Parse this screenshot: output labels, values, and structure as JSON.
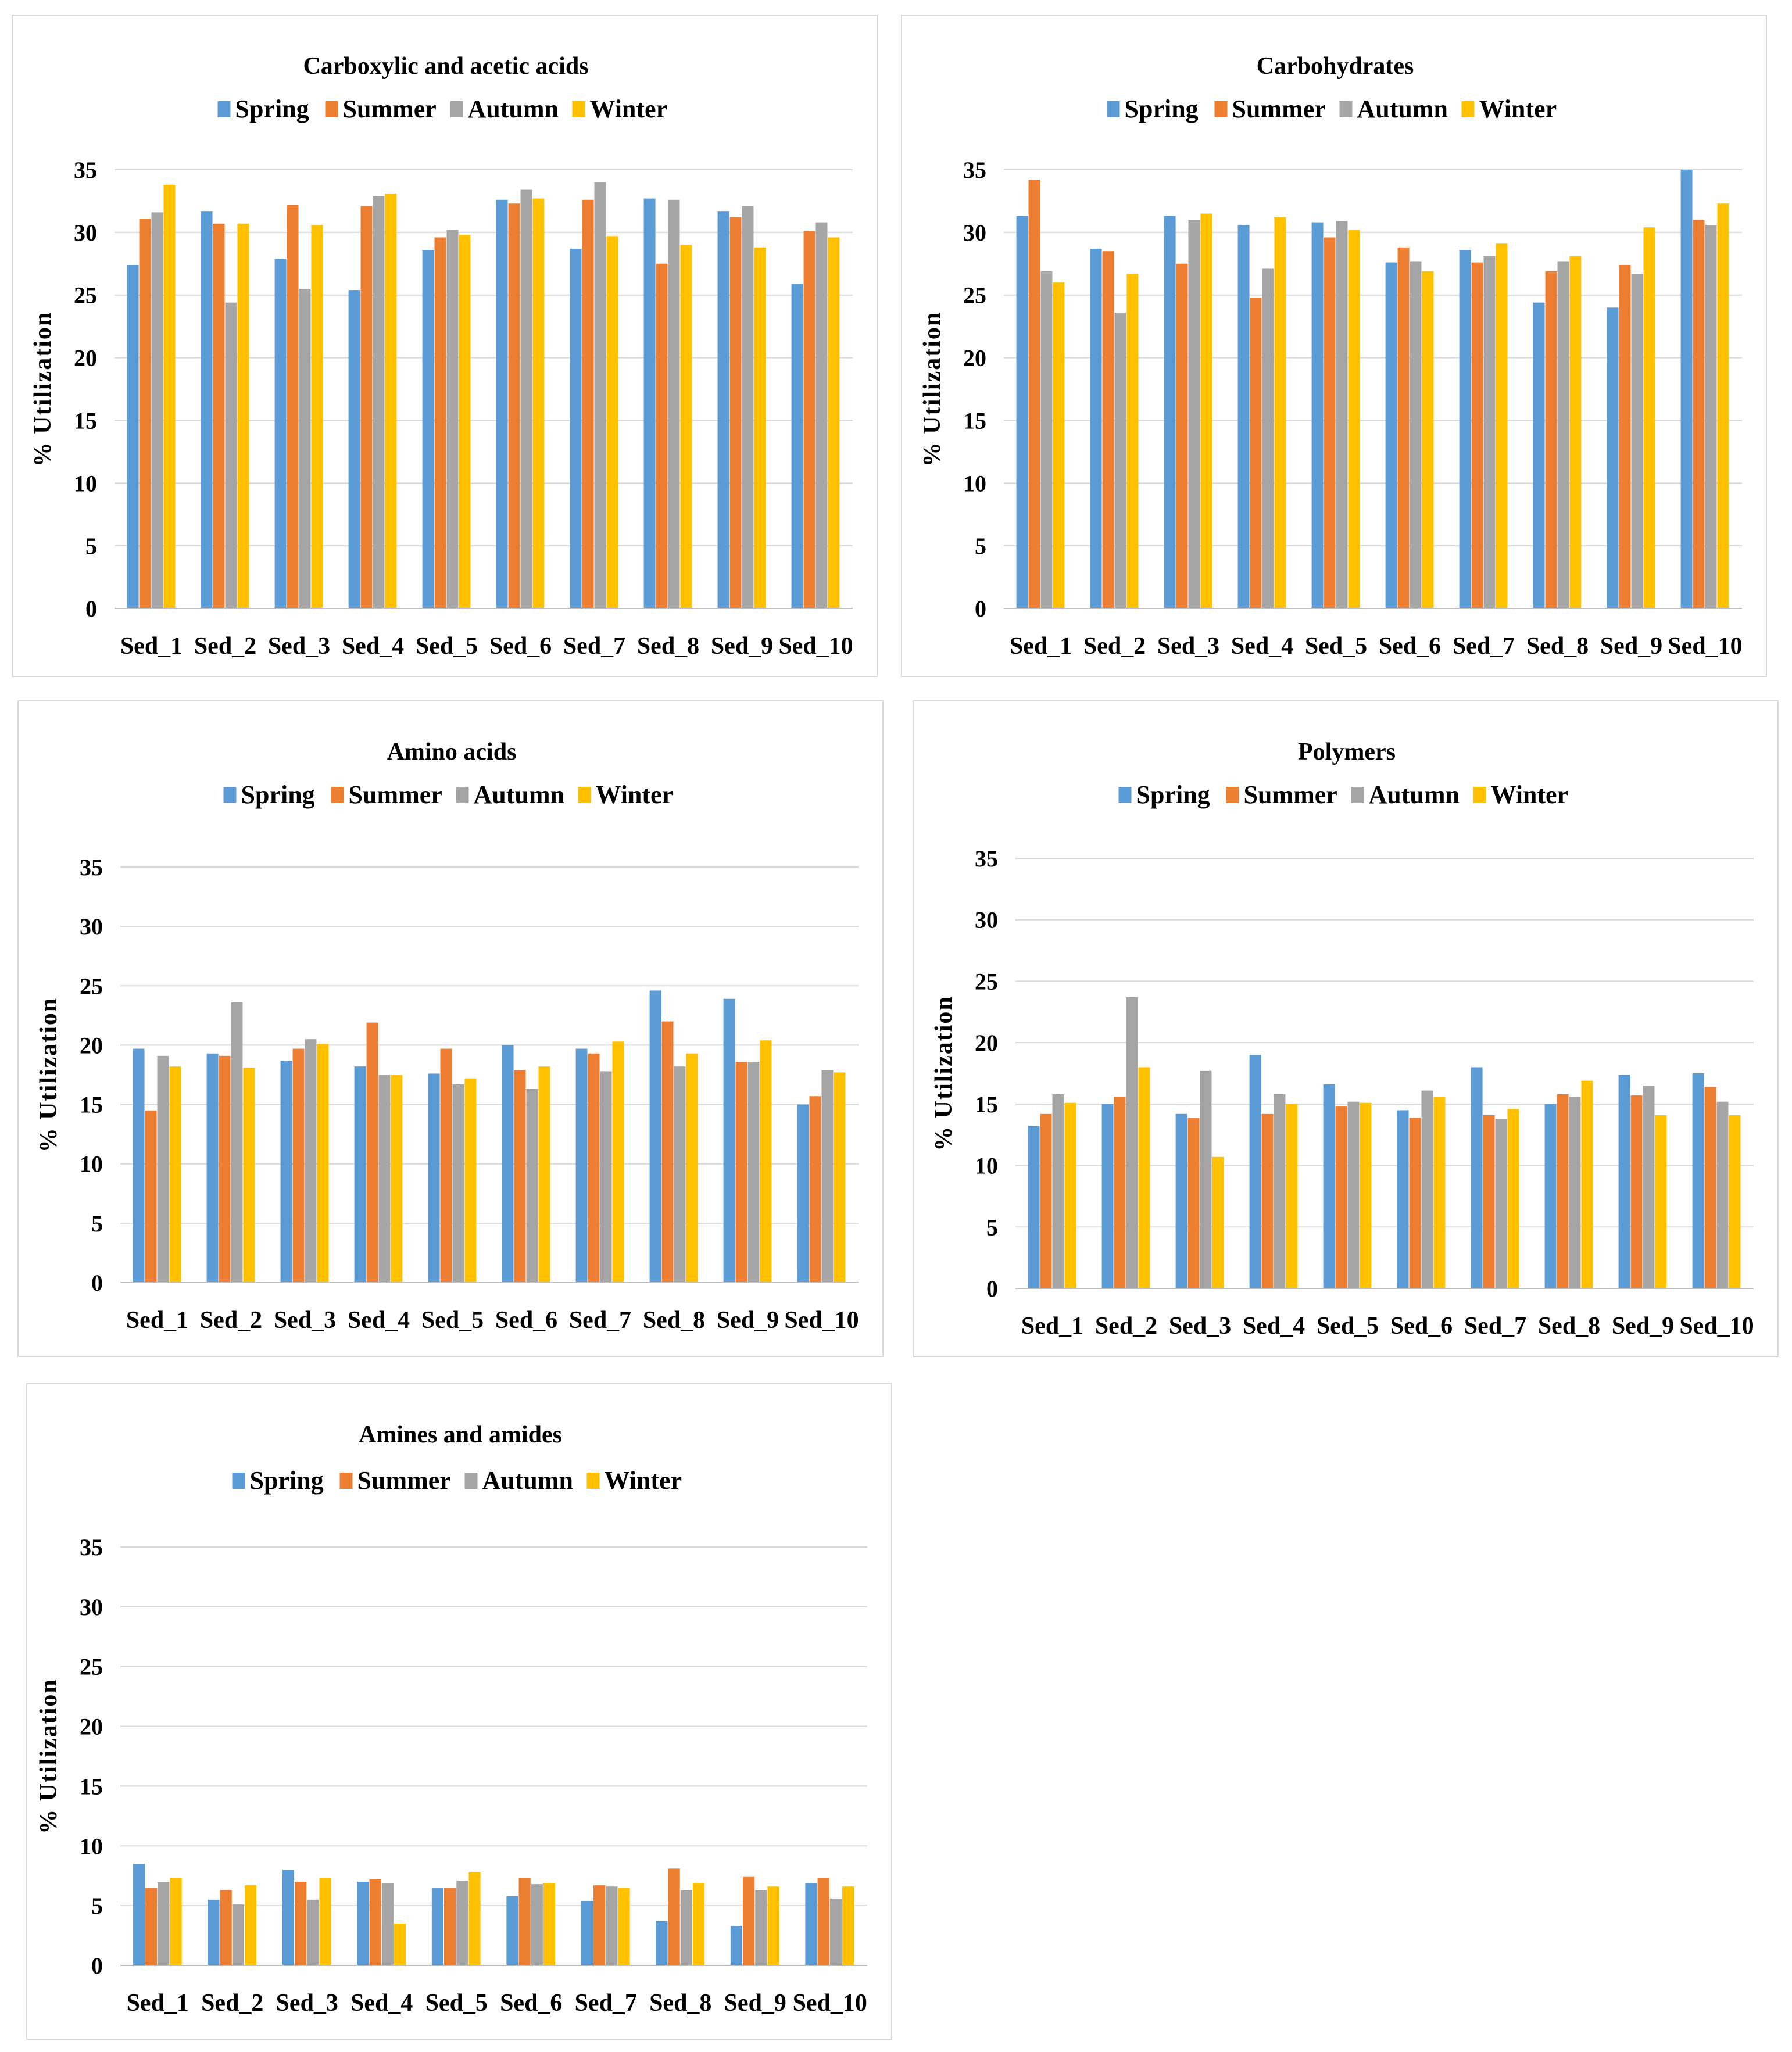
{
  "colors": {
    "Spring": "#5b9bd5",
    "Summer": "#ed7d31",
    "Autumn": "#a5a5a5",
    "Winter": "#ffc000",
    "grid": "#d9d9d9"
  },
  "chart_data": [
    {
      "type": "bar",
      "title": "Carboxylic and acetic acids",
      "ylabel": "% Utilization",
      "xlabel": "",
      "ylim": [
        0,
        35
      ],
      "yticks": [
        0,
        5,
        10,
        15,
        20,
        25,
        30,
        35
      ],
      "legend_position": "top",
      "categories": [
        "Sed_1",
        "Sed_2",
        "Sed_3",
        "Sed_4",
        "Sed_5",
        "Sed_6",
        "Sed_7",
        "Sed_8",
        "Sed_9",
        "Sed_10"
      ],
      "series": [
        {
          "name": "Spring",
          "values": [
            27.4,
            31.7,
            27.9,
            25.4,
            28.6,
            32.6,
            28.7,
            32.7,
            31.7,
            25.9
          ]
        },
        {
          "name": "Summer",
          "values": [
            31.1,
            30.7,
            32.2,
            32.1,
            29.6,
            32.3,
            32.6,
            27.5,
            31.2,
            30.1
          ]
        },
        {
          "name": "Autumn",
          "values": [
            31.6,
            24.4,
            25.5,
            32.9,
            30.2,
            33.4,
            34.0,
            32.6,
            32.1,
            30.8
          ]
        },
        {
          "name": "Winter",
          "values": [
            33.8,
            30.7,
            30.6,
            33.1,
            29.8,
            32.7,
            29.7,
            29.0,
            28.8,
            29.6
          ]
        }
      ]
    },
    {
      "type": "bar",
      "title": "Carbohydrates",
      "ylabel": "% Utilization",
      "xlabel": "",
      "ylim": [
        0,
        35
      ],
      "yticks": [
        0,
        5,
        10,
        15,
        20,
        25,
        30,
        35
      ],
      "legend_position": "top",
      "categories": [
        "Sed_1",
        "Sed_2",
        "Sed_3",
        "Sed_4",
        "Sed_5",
        "Sed_6",
        "Sed_7",
        "Sed_8",
        "Sed_9",
        "Sed_10"
      ],
      "series": [
        {
          "name": "Spring",
          "values": [
            31.3,
            28.7,
            31.3,
            30.6,
            30.8,
            27.6,
            28.6,
            24.4,
            24.0,
            35.0
          ]
        },
        {
          "name": "Summer",
          "values": [
            34.2,
            28.5,
            27.5,
            24.8,
            29.6,
            28.8,
            27.6,
            26.9,
            27.4,
            31.0
          ]
        },
        {
          "name": "Autumn",
          "values": [
            26.9,
            23.6,
            31.0,
            27.1,
            30.9,
            27.7,
            28.1,
            27.7,
            26.7,
            30.6
          ]
        },
        {
          "name": "Winter",
          "values": [
            26.0,
            26.7,
            31.5,
            31.2,
            30.2,
            26.9,
            29.1,
            28.1,
            30.4,
            32.3
          ]
        }
      ]
    },
    {
      "type": "bar",
      "title": "Amino acids",
      "ylabel": "% Utilization",
      "xlabel": "",
      "ylim": [
        0,
        35
      ],
      "yticks": [
        0,
        5,
        10,
        15,
        20,
        25,
        30,
        35
      ],
      "legend_position": "top",
      "categories": [
        "Sed_1",
        "Sed_2",
        "Sed_3",
        "Sed_4",
        "Sed_5",
        "Sed_6",
        "Sed_7",
        "Sed_8",
        "Sed_9",
        "Sed_10"
      ],
      "series": [
        {
          "name": "Spring",
          "values": [
            19.7,
            19.3,
            18.7,
            18.2,
            17.6,
            20.0,
            19.7,
            24.6,
            23.9,
            15.0
          ]
        },
        {
          "name": "Summer",
          "values": [
            14.5,
            19.1,
            19.7,
            21.9,
            19.7,
            17.9,
            19.3,
            22.0,
            18.6,
            15.7
          ]
        },
        {
          "name": "Autumn",
          "values": [
            19.1,
            23.6,
            20.5,
            17.5,
            16.7,
            16.3,
            17.8,
            18.2,
            18.6,
            17.9
          ]
        },
        {
          "name": "Winter",
          "values": [
            18.2,
            18.1,
            20.1,
            17.5,
            17.2,
            18.2,
            20.3,
            19.3,
            20.4,
            17.7
          ]
        }
      ]
    },
    {
      "type": "bar",
      "title": "Polymers",
      "ylabel": "% Utilization",
      "xlabel": "",
      "ylim": [
        0,
        35
      ],
      "yticks": [
        0,
        5,
        10,
        15,
        20,
        25,
        30,
        35
      ],
      "legend_position": "top",
      "categories": [
        "Sed_1",
        "Sed_2",
        "Sed_3",
        "Sed_4",
        "Sed_5",
        "Sed_6",
        "Sed_7",
        "Sed_8",
        "Sed_9",
        "Sed_10"
      ],
      "series": [
        {
          "name": "Spring",
          "values": [
            13.2,
            15.0,
            14.2,
            19.0,
            16.6,
            14.5,
            18.0,
            15.0,
            17.4,
            17.5
          ]
        },
        {
          "name": "Summer",
          "values": [
            14.2,
            15.6,
            13.9,
            14.2,
            14.8,
            13.9,
            14.1,
            15.8,
            15.7,
            16.4
          ]
        },
        {
          "name": "Autumn",
          "values": [
            15.8,
            23.7,
            17.7,
            15.8,
            15.2,
            16.1,
            13.8,
            15.6,
            16.5,
            15.2
          ]
        },
        {
          "name": "Winter",
          "values": [
            15.1,
            18.0,
            10.7,
            15.0,
            15.1,
            15.6,
            14.6,
            16.9,
            14.1,
            14.1
          ]
        }
      ]
    },
    {
      "type": "bar",
      "title": "Amines and amides",
      "ylabel": "% Utilization",
      "xlabel": "",
      "ylim": [
        0,
        35
      ],
      "yticks": [
        0,
        5,
        10,
        15,
        20,
        25,
        30,
        35
      ],
      "legend_position": "top",
      "categories": [
        "Sed_1",
        "Sed_2",
        "Sed_3",
        "Sed_4",
        "Sed_5",
        "Sed_6",
        "Sed_7",
        "Sed_8",
        "Sed_9",
        "Sed_10"
      ],
      "series": [
        {
          "name": "Spring",
          "values": [
            8.5,
            5.5,
            8.0,
            7.0,
            6.5,
            5.8,
            5.4,
            3.7,
            3.3,
            6.9
          ]
        },
        {
          "name": "Summer",
          "values": [
            6.5,
            6.3,
            7.0,
            7.2,
            6.5,
            7.3,
            6.7,
            8.1,
            7.4,
            7.3
          ]
        },
        {
          "name": "Autumn",
          "values": [
            7.0,
            5.1,
            5.5,
            6.9,
            7.1,
            6.8,
            6.6,
            6.3,
            6.3,
            5.6
          ]
        },
        {
          "name": "Winter",
          "values": [
            7.3,
            6.7,
            7.3,
            3.5,
            7.8,
            6.9,
            6.5,
            6.9,
            6.6,
            6.6
          ]
        }
      ]
    }
  ]
}
